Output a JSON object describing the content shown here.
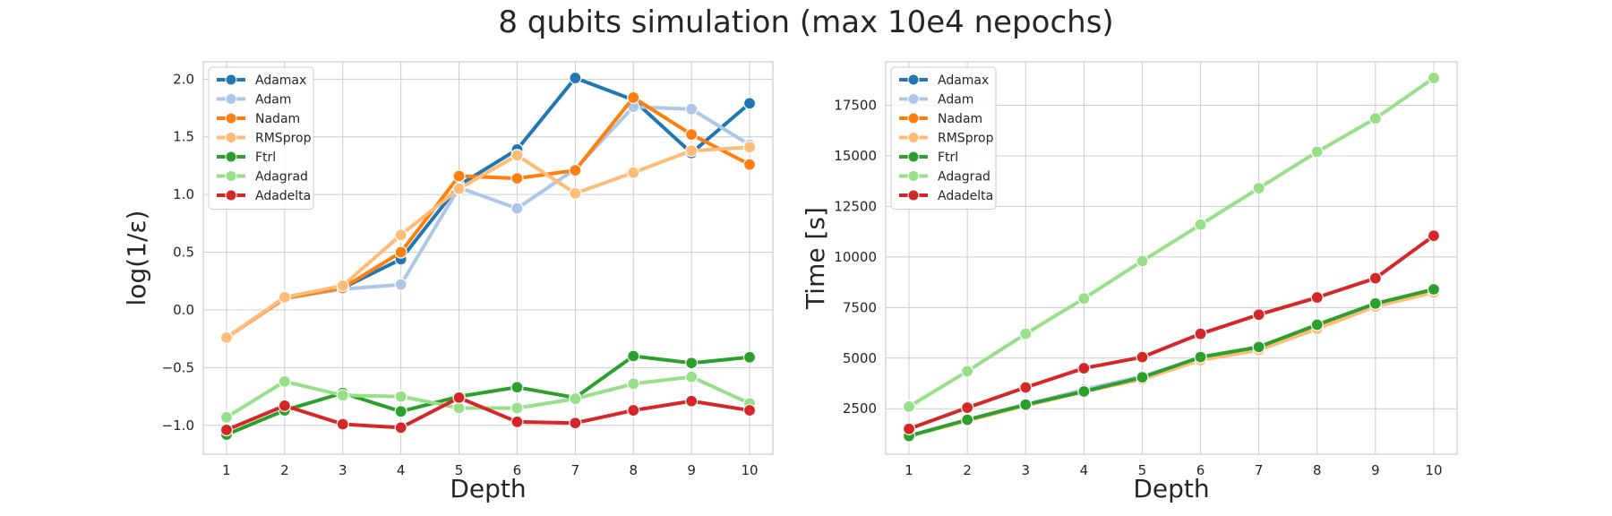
{
  "figure": {
    "title": "8 qubits simulation (max 10e4 nepochs)"
  },
  "chart_data": [
    {
      "type": "line",
      "title": "",
      "xlabel": "Depth",
      "ylabel": "log(1/ε)",
      "x": [
        1,
        2,
        3,
        4,
        5,
        6,
        7,
        8,
        9,
        10
      ],
      "xticks": [
        "1",
        "2",
        "3",
        "4",
        "5",
        "6",
        "7",
        "8",
        "9",
        "10"
      ],
      "xlim": [
        0.6,
        10.4
      ],
      "ylim": [
        -1.25,
        2.15
      ],
      "yticks": [
        -1.0,
        -0.5,
        0.0,
        0.5,
        1.0,
        1.5,
        2.0
      ],
      "ytick_labels": [
        "−1.0",
        "−0.5",
        "0.0",
        "0.5",
        "1.0",
        "1.5",
        "2.0"
      ],
      "grid": true,
      "legend": "top-left",
      "series": [
        {
          "name": "Adamax",
          "color": "#1f77b4",
          "values": [
            -0.24,
            0.1,
            0.19,
            0.44,
            1.08,
            1.39,
            2.01,
            1.82,
            1.36,
            1.79
          ]
        },
        {
          "name": "Adam",
          "color": "#aec7e8",
          "values": [
            -0.24,
            0.1,
            0.18,
            0.22,
            1.06,
            0.88,
            1.22,
            1.76,
            1.74,
            1.43
          ]
        },
        {
          "name": "Nadam",
          "color": "#ff7f0e",
          "values": [
            -0.24,
            0.1,
            0.19,
            0.5,
            1.16,
            1.14,
            1.21,
            1.84,
            1.52,
            1.26
          ]
        },
        {
          "name": "RMSprop",
          "color": "#ffbb78",
          "values": [
            -0.24,
            0.11,
            0.21,
            0.65,
            1.05,
            1.34,
            1.01,
            1.19,
            1.38,
            1.41
          ]
        },
        {
          "name": "Ftrl",
          "color": "#2ca02c",
          "values": [
            -1.08,
            -0.87,
            -0.72,
            -0.88,
            -0.75,
            -0.67,
            -0.76,
            -0.4,
            -0.46,
            -0.41
          ]
        },
        {
          "name": "Adagrad",
          "color": "#98df8a",
          "values": [
            -0.93,
            -0.62,
            -0.74,
            -0.75,
            -0.85,
            -0.85,
            -0.77,
            -0.64,
            -0.58,
            -0.81
          ]
        },
        {
          "name": "Adadelta",
          "color": "#d62728",
          "values": [
            -1.04,
            -0.83,
            -0.99,
            -1.02,
            -0.76,
            -0.97,
            -0.98,
            -0.87,
            -0.79,
            -0.87
          ]
        }
      ]
    },
    {
      "type": "line",
      "title": "",
      "xlabel": "Depth",
      "ylabel": "Time [s]",
      "x": [
        1,
        2,
        3,
        4,
        5,
        6,
        7,
        8,
        9,
        10
      ],
      "xticks": [
        "1",
        "2",
        "3",
        "4",
        "5",
        "6",
        "7",
        "8",
        "9",
        "10"
      ],
      "xlim": [
        0.6,
        10.4
      ],
      "ylim": [
        250,
        19650
      ],
      "yticks": [
        2500,
        5000,
        7500,
        10000,
        12500,
        15000,
        17500
      ],
      "ytick_labels": [
        "2500",
        "5000",
        "7500",
        "10000",
        "12500",
        "15000",
        "17500"
      ],
      "grid": true,
      "legend": "top-left",
      "series": [
        {
          "name": "Adamax",
          "color": "#1f77b4",
          "values": [
            1150,
            1950,
            2700,
            3400,
            4050,
            5000,
            5500,
            6550,
            7650,
            8250
          ]
        },
        {
          "name": "Adam",
          "color": "#aec7e8",
          "values": [
            1150,
            1950,
            2700,
            3450,
            4100,
            5000,
            5500,
            6550,
            7650,
            8250
          ]
        },
        {
          "name": "Nadam",
          "color": "#ff7f0e",
          "values": [
            1150,
            1950,
            2650,
            3350,
            4000,
            4950,
            5450,
            6500,
            7600,
            8250
          ]
        },
        {
          "name": "RMSprop",
          "color": "#ffbb78",
          "values": [
            1150,
            1900,
            2650,
            3350,
            3950,
            4900,
            5400,
            6450,
            7550,
            8250
          ]
        },
        {
          "name": "Ftrl",
          "color": "#2ca02c",
          "values": [
            1150,
            1950,
            2700,
            3350,
            4050,
            5050,
            5550,
            6650,
            7700,
            8400
          ]
        },
        {
          "name": "Adagrad",
          "color": "#98df8a",
          "values": [
            2600,
            4350,
            6200,
            7950,
            9800,
            11600,
            13400,
            15200,
            16850,
            18850
          ]
        },
        {
          "name": "Adadelta",
          "color": "#d62728",
          "values": [
            1500,
            2550,
            3550,
            4500,
            5050,
            6200,
            7150,
            8000,
            8950,
            11050
          ]
        }
      ]
    }
  ]
}
